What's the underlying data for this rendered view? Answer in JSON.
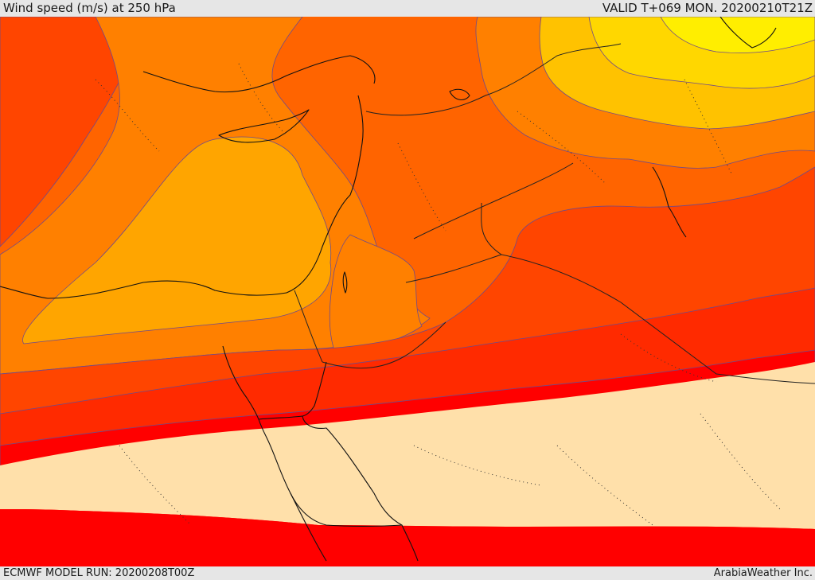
{
  "header": {
    "title": "Wind speed (m/s) at 250 hPa",
    "valid": "VALID T+069 MON. 20200210T21Z"
  },
  "footer": {
    "model_run": "ECMWF MODEL RUN: 20200208T00Z",
    "credit": "ArabiaWeather Inc."
  },
  "colors": {
    "yellow": "#ffe600",
    "yellow_orange": "#ffc200",
    "light_orange": "#ffa500",
    "orange": "#ff8000",
    "dark_orange": "#ff6400",
    "orange_red": "#ff4500",
    "red_orange": "#ff2a00",
    "red": "#ff0000",
    "calm_beige": "#ffe0aa",
    "sea_white": "#ffffff"
  }
}
